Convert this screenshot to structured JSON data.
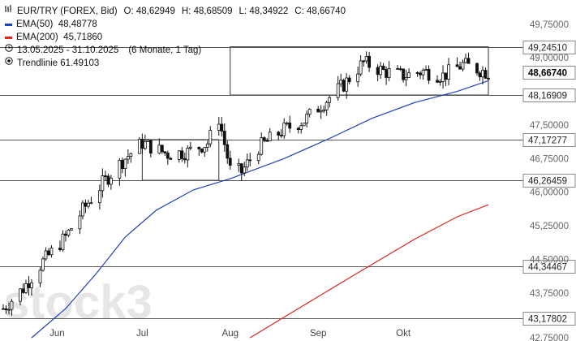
{
  "legend": {
    "instrument": "EUR/TRY (FOREX, Bid)",
    "ohlc": {
      "o_label": "O:",
      "o": "48,62949",
      "h_label": "H:",
      "h": "48,68509",
      "l_label": "L:",
      "l": "48,34922",
      "c_label": "C:",
      "c": "48,66740"
    },
    "ema50": {
      "label": "EMA(50)",
      "value": "48,48778",
      "color": "#1f3fbf"
    },
    "ema200": {
      "label": "EMA(200)",
      "value": "45,71860",
      "color": "#e0241f"
    },
    "range": {
      "dates": "13.05.2025 - 31.10.2025",
      "period": "(6 Monate, 1 Tag)"
    },
    "trendline": {
      "label": "Trendlinie",
      "value": "61.49103"
    },
    "icons": {
      "ohlc": "candle-bars-icon",
      "range": "clock-icon",
      "trendline": "target-icon"
    }
  },
  "watermark": "stock3",
  "chart_data": {
    "type": "candlestick",
    "x_range": [
      "2025-05-13",
      "2025-10-31"
    ],
    "ylim": [
      42.75,
      50.0
    ],
    "y_ticks": [
      "42,75000",
      "43,75000",
      "44,50000",
      "45,25000",
      "46,00000",
      "46,75000",
      "47,50000",
      "49,00000",
      "49,75000"
    ],
    "x_ticks": [
      {
        "label": "Jun",
        "date": "2025-06-01"
      },
      {
        "label": "Jul",
        "date": "2025-07-01"
      },
      {
        "label": "Aug",
        "date": "2025-08-01"
      },
      {
        "label": "Sep",
        "date": "2025-09-01"
      },
      {
        "label": "Okt",
        "date": "2025-10-01"
      }
    ],
    "levels": [
      {
        "label": "49,24510",
        "value": 49.2451
      },
      {
        "label": "48,16909",
        "value": 48.16909
      },
      {
        "label": "47,17277",
        "value": 47.17277
      },
      {
        "label": "46,26459",
        "value": 46.26459
      },
      {
        "label": "44,34467",
        "value": 44.34467
      },
      {
        "label": "43,17802",
        "value": 43.17802
      }
    ],
    "current_price": {
      "label": "48,66740",
      "value": 48.6674
    },
    "zones": [
      {
        "from": "2025-07-01",
        "to": "2025-07-28",
        "low": 46.26459,
        "high": 47.17277
      },
      {
        "from": "2025-08-01",
        "to": "2025-10-31",
        "low": 48.16909,
        "high": 49.2451
      }
    ],
    "series": [
      {
        "name": "EUR/TRY (FOREX, Bid)",
        "kind": "candles",
        "anchors": [
          {
            "date": "2025-05-13",
            "close": 43.4
          },
          {
            "date": "2025-05-20",
            "close": 43.85
          },
          {
            "date": "2025-05-27",
            "close": 44.45
          },
          {
            "date": "2025-06-04",
            "close": 45.0
          },
          {
            "date": "2025-06-10",
            "close": 45.6
          },
          {
            "date": "2025-06-17",
            "close": 46.2
          },
          {
            "date": "2025-06-24",
            "close": 46.7
          },
          {
            "date": "2025-07-01",
            "close": 47.1
          },
          {
            "date": "2025-07-10",
            "close": 46.85
          },
          {
            "date": "2025-07-17",
            "close": 46.9
          },
          {
            "date": "2025-07-24",
            "close": 47.1
          },
          {
            "date": "2025-07-28",
            "close": 47.65
          },
          {
            "date": "2025-08-01",
            "close": 46.5
          },
          {
            "date": "2025-08-05",
            "close": 46.45
          },
          {
            "date": "2025-08-11",
            "close": 47.0
          },
          {
            "date": "2025-08-20",
            "close": 47.4
          },
          {
            "date": "2025-08-27",
            "close": 47.6
          },
          {
            "date": "2025-09-03",
            "close": 48.0
          },
          {
            "date": "2025-09-10",
            "close": 48.4
          },
          {
            "date": "2025-09-17",
            "close": 48.9
          },
          {
            "date": "2025-09-24",
            "close": 48.7
          },
          {
            "date": "2025-10-01",
            "close": 48.6
          },
          {
            "date": "2025-10-08",
            "close": 48.7
          },
          {
            "date": "2025-10-15",
            "close": 48.6
          },
          {
            "date": "2025-10-22",
            "close": 48.85
          },
          {
            "date": "2025-10-31",
            "close": 48.6674
          }
        ]
      },
      {
        "name": "EMA(50)",
        "kind": "line",
        "color": "#1f3fbf",
        "points": [
          {
            "date": "2025-05-23",
            "value": 42.75
          },
          {
            "date": "2025-06-04",
            "value": 43.4
          },
          {
            "date": "2025-06-15",
            "value": 44.2
          },
          {
            "date": "2025-06-25",
            "value": 45.0
          },
          {
            "date": "2025-07-06",
            "value": 45.6
          },
          {
            "date": "2025-07-19",
            "value": 46.05
          },
          {
            "date": "2025-08-01",
            "value": 46.3
          },
          {
            "date": "2025-08-20",
            "value": 46.75
          },
          {
            "date": "2025-09-05",
            "value": 47.2
          },
          {
            "date": "2025-09-20",
            "value": 47.65
          },
          {
            "date": "2025-10-05",
            "value": 48.0
          },
          {
            "date": "2025-10-20",
            "value": 48.25
          },
          {
            "date": "2025-10-31",
            "value": 48.48778
          }
        ]
      },
      {
        "name": "EMA(200)",
        "kind": "line",
        "color": "#e0241f",
        "points": [
          {
            "date": "2025-08-08",
            "value": 42.75
          },
          {
            "date": "2025-08-25",
            "value": 43.4
          },
          {
            "date": "2025-09-15",
            "value": 44.2
          },
          {
            "date": "2025-10-05",
            "value": 44.95
          },
          {
            "date": "2025-10-20",
            "value": 45.45
          },
          {
            "date": "2025-10-31",
            "value": 45.7186
          }
        ]
      }
    ]
  }
}
